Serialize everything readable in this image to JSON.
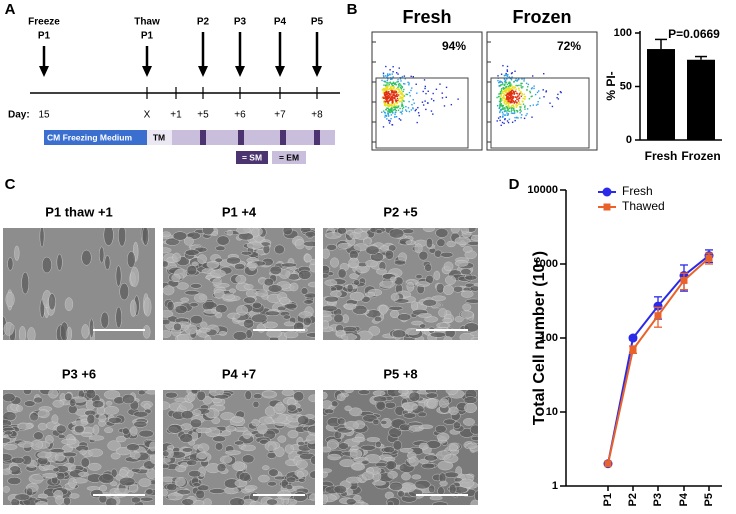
{
  "panels": {
    "timeline": {
      "letter": "A",
      "arrows": [
        [
          "Freeze",
          "P1"
        ],
        [
          "Thaw",
          "P1"
        ],
        [
          "P2"
        ],
        [
          "P3"
        ],
        [
          "P4"
        ],
        [
          "P5"
        ]
      ],
      "day_label": "Day:",
      "days": [
        "15",
        "X",
        "+1",
        "+5",
        "+6",
        "+7",
        "+8"
      ],
      "media": [
        "CM Freezing Medium",
        "TM"
      ],
      "legend": [
        "= SM",
        "= EM"
      ]
    },
    "flow": {
      "letter": "B",
      "plots": [
        {
          "title": "Fresh",
          "percent": "94%"
        },
        {
          "title": "Frozen",
          "percent": "72%"
        }
      ]
    },
    "micrographs": {
      "letter": "C",
      "images": [
        "P1 thaw +1",
        "P1 +4",
        "P2 +5",
        "P3 +6",
        "P4 +7",
        "P5 +8"
      ]
    },
    "growth": {
      "letter": "D"
    }
  },
  "chart_data": [
    {
      "type": "bar",
      "annotation": "P=0.0669",
      "ylabel": "% PI-",
      "categories": [
        "Fresh",
        "Frozen"
      ],
      "values": [
        85,
        75
      ],
      "errors": [
        9,
        3
      ],
      "color": "#000000",
      "ylim": [
        0,
        100
      ],
      "yticks": [
        0,
        50,
        100
      ]
    },
    {
      "type": "line",
      "ylabel": "Total Cell number (10⁶)",
      "categories": [
        "P1",
        "P2",
        "P3",
        "P4",
        "P5"
      ],
      "log_y": true,
      "ylim": [
        1,
        10000
      ],
      "yticks": [
        1,
        10,
        100,
        1000,
        10000
      ],
      "legend": "upper left",
      "series": [
        {
          "name": "Fresh",
          "color": "#2a2ae8",
          "marker": "circle",
          "values": [
            2,
            100,
            270,
            700,
            1300
          ],
          "errors": [
            0,
            6,
            90,
            270,
            250
          ]
        },
        {
          "name": "Thawed",
          "color": "#e8622a",
          "marker": "square",
          "values": [
            2,
            70,
            200,
            600,
            1200
          ],
          "errors": [
            0,
            8,
            60,
            150,
            200
          ]
        }
      ]
    }
  ]
}
